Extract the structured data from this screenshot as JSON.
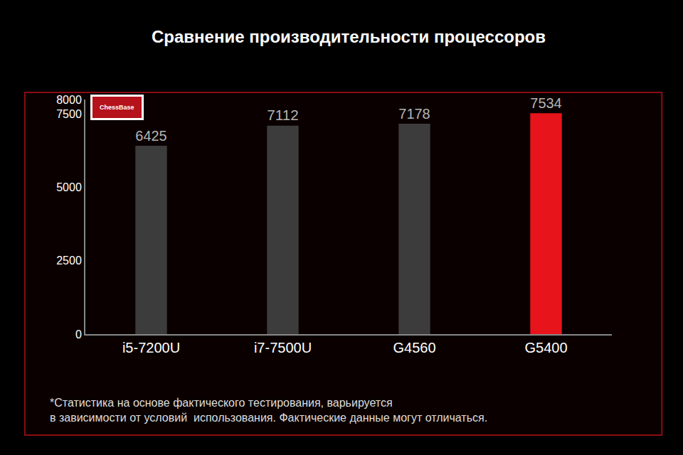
{
  "chart_data": {
    "type": "bar",
    "title": "Сравнение производительности процессоров",
    "categories": [
      "i5-7200U",
      "i7-7500U",
      "G4560",
      "G5400"
    ],
    "values": [
      6425,
      7112,
      7178,
      7534
    ],
    "colors": [
      "#3c3c3c",
      "#3c3c3c",
      "#3c3c3c",
      "#e8141b"
    ],
    "ylim": [
      0,
      8000
    ],
    "yticks": [
      0,
      2500,
      5000,
      7500,
      8000
    ],
    "grid": false,
    "data_labels": true,
    "annotations": [
      {
        "text": "ChessBase"
      },
      {
        "text": "*Статистика на основе фактического тестирования, варьируется"
      },
      {
        "text": "в зависимости от условий  использования. Фактические данные могут отличаться."
      }
    ]
  }
}
